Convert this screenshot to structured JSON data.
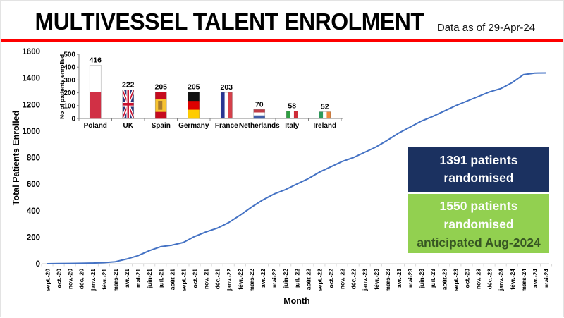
{
  "header": {
    "title": "MULTIVESSEL TALENT ENROLMENT",
    "subtitle": "Data as of 29-Apr-24"
  },
  "colors": {
    "accent_red": "#fe0000",
    "line_blue": "#4472c4",
    "navy_box": "#1b3160",
    "green_box": "#92d050",
    "green_box_dark_text": "#375623",
    "axis_gray": "#d9d9d9"
  },
  "callouts": {
    "randomised": {
      "line1": "1391 patients",
      "line2": "randomised"
    },
    "anticipated": {
      "line1": "1550 patients",
      "line2": "randomised",
      "line3": "anticipated Aug-2024"
    }
  },
  "chart_data": [
    {
      "type": "line",
      "title": "",
      "xlabel": "Month",
      "ylabel": "Total Patients Enrolled",
      "ylim": [
        0,
        1600
      ],
      "yticks": [
        0,
        200,
        400,
        600,
        800,
        1000,
        1200,
        1400,
        1600
      ],
      "grid": false,
      "legend": "none",
      "x": [
        "sept.-20",
        "oct.-20",
        "nov.-20",
        "déc.-20",
        "janv.-21",
        "févr.-21",
        "mars-21",
        "avr.-21",
        "mai-21",
        "juin-21",
        "juil.-21",
        "août-21",
        "sept.-21",
        "oct.-21",
        "nov.-21",
        "déc.-21",
        "janv.-22",
        "févr.-22",
        "mars-22",
        "avr.-22",
        "mai-22",
        "juin-22",
        "juil.-22",
        "août-22",
        "sept.-22",
        "oct.-22",
        "nov.-22",
        "déc.-22",
        "janv.-23",
        "févr.-23",
        "mars-23",
        "avr.-23",
        "mai-23",
        "juin-23",
        "juil.-23",
        "août-23",
        "sept.-23",
        "oct.-23",
        "nov.-23",
        "déc.-23",
        "janv.-24",
        "févr.-24",
        "mars-24",
        "avr.-24",
        "mai-24"
      ],
      "values": [
        0,
        1,
        2,
        3,
        5,
        8,
        15,
        35,
        60,
        98,
        128,
        140,
        160,
        205,
        240,
        268,
        310,
        365,
        425,
        480,
        525,
        558,
        600,
        640,
        690,
        730,
        770,
        800,
        840,
        880,
        930,
        985,
        1030,
        1075,
        1110,
        1150,
        1190,
        1225,
        1260,
        1295,
        1320,
        1365,
        1425,
        1437,
        1438
      ],
      "note": "values estimated from plotted curve; curve flattens at ~1438 by Apr/May-2024"
    },
    {
      "type": "bar",
      "title": "",
      "xlabel": "",
      "ylabel": "No of patients enrolled",
      "ylim": [
        0,
        500
      ],
      "yticks": [
        0,
        100,
        200,
        300,
        400,
        500
      ],
      "bar_style": "country-flag-fill",
      "categories": [
        "Poland",
        "UK",
        "Spain",
        "Germany",
        "France",
        "Netherlands",
        "Italy",
        "Ireland"
      ],
      "values": [
        416,
        222,
        205,
        205,
        203,
        70,
        58,
        52
      ]
    }
  ]
}
